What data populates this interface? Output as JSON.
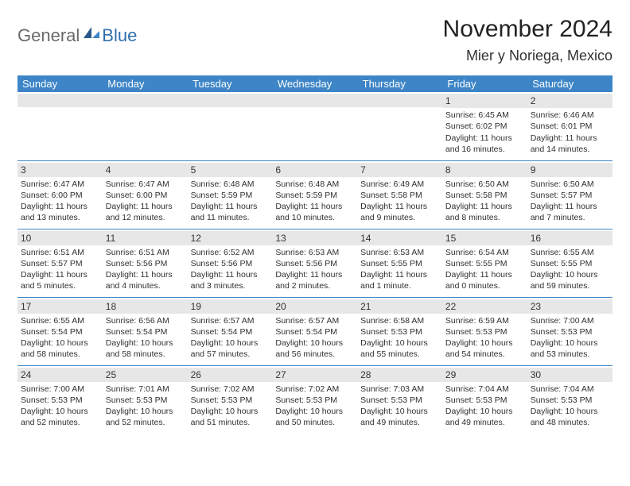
{
  "brand": {
    "general": "General",
    "blue": "Blue"
  },
  "title": "November 2024",
  "location": "Mier y Noriega, Mexico",
  "colors": {
    "header_bg": "#3d85c6",
    "header_text": "#ffffff",
    "daynum_bg": "#e7e7e7",
    "cell_border": "#3d85c6",
    "body_text": "#303030",
    "logo_gray": "#6a6a6a",
    "logo_blue": "#2f6fae",
    "page_bg": "#ffffff"
  },
  "typography": {
    "title_fontsize": 30,
    "location_fontsize": 18,
    "weekday_fontsize": 13,
    "daynum_fontsize": 12,
    "cell_fontsize": 10.5
  },
  "weekdays": [
    "Sunday",
    "Monday",
    "Tuesday",
    "Wednesday",
    "Thursday",
    "Friday",
    "Saturday"
  ],
  "weeks": [
    [
      {
        "n": "",
        "sr": "",
        "ss": "",
        "dl": ""
      },
      {
        "n": "",
        "sr": "",
        "ss": "",
        "dl": ""
      },
      {
        "n": "",
        "sr": "",
        "ss": "",
        "dl": ""
      },
      {
        "n": "",
        "sr": "",
        "ss": "",
        "dl": ""
      },
      {
        "n": "",
        "sr": "",
        "ss": "",
        "dl": ""
      },
      {
        "n": "1",
        "sr": "Sunrise: 6:45 AM",
        "ss": "Sunset: 6:02 PM",
        "dl": "Daylight: 11 hours and 16 minutes."
      },
      {
        "n": "2",
        "sr": "Sunrise: 6:46 AM",
        "ss": "Sunset: 6:01 PM",
        "dl": "Daylight: 11 hours and 14 minutes."
      }
    ],
    [
      {
        "n": "3",
        "sr": "Sunrise: 6:47 AM",
        "ss": "Sunset: 6:00 PM",
        "dl": "Daylight: 11 hours and 13 minutes."
      },
      {
        "n": "4",
        "sr": "Sunrise: 6:47 AM",
        "ss": "Sunset: 6:00 PM",
        "dl": "Daylight: 11 hours and 12 minutes."
      },
      {
        "n": "5",
        "sr": "Sunrise: 6:48 AM",
        "ss": "Sunset: 5:59 PM",
        "dl": "Daylight: 11 hours and 11 minutes."
      },
      {
        "n": "6",
        "sr": "Sunrise: 6:48 AM",
        "ss": "Sunset: 5:59 PM",
        "dl": "Daylight: 11 hours and 10 minutes."
      },
      {
        "n": "7",
        "sr": "Sunrise: 6:49 AM",
        "ss": "Sunset: 5:58 PM",
        "dl": "Daylight: 11 hours and 9 minutes."
      },
      {
        "n": "8",
        "sr": "Sunrise: 6:50 AM",
        "ss": "Sunset: 5:58 PM",
        "dl": "Daylight: 11 hours and 8 minutes."
      },
      {
        "n": "9",
        "sr": "Sunrise: 6:50 AM",
        "ss": "Sunset: 5:57 PM",
        "dl": "Daylight: 11 hours and 7 minutes."
      }
    ],
    [
      {
        "n": "10",
        "sr": "Sunrise: 6:51 AM",
        "ss": "Sunset: 5:57 PM",
        "dl": "Daylight: 11 hours and 5 minutes."
      },
      {
        "n": "11",
        "sr": "Sunrise: 6:51 AM",
        "ss": "Sunset: 5:56 PM",
        "dl": "Daylight: 11 hours and 4 minutes."
      },
      {
        "n": "12",
        "sr": "Sunrise: 6:52 AM",
        "ss": "Sunset: 5:56 PM",
        "dl": "Daylight: 11 hours and 3 minutes."
      },
      {
        "n": "13",
        "sr": "Sunrise: 6:53 AM",
        "ss": "Sunset: 5:56 PM",
        "dl": "Daylight: 11 hours and 2 minutes."
      },
      {
        "n": "14",
        "sr": "Sunrise: 6:53 AM",
        "ss": "Sunset: 5:55 PM",
        "dl": "Daylight: 11 hours and 1 minute."
      },
      {
        "n": "15",
        "sr": "Sunrise: 6:54 AM",
        "ss": "Sunset: 5:55 PM",
        "dl": "Daylight: 11 hours and 0 minutes."
      },
      {
        "n": "16",
        "sr": "Sunrise: 6:55 AM",
        "ss": "Sunset: 5:55 PM",
        "dl": "Daylight: 10 hours and 59 minutes."
      }
    ],
    [
      {
        "n": "17",
        "sr": "Sunrise: 6:55 AM",
        "ss": "Sunset: 5:54 PM",
        "dl": "Daylight: 10 hours and 58 minutes."
      },
      {
        "n": "18",
        "sr": "Sunrise: 6:56 AM",
        "ss": "Sunset: 5:54 PM",
        "dl": "Daylight: 10 hours and 58 minutes."
      },
      {
        "n": "19",
        "sr": "Sunrise: 6:57 AM",
        "ss": "Sunset: 5:54 PM",
        "dl": "Daylight: 10 hours and 57 minutes."
      },
      {
        "n": "20",
        "sr": "Sunrise: 6:57 AM",
        "ss": "Sunset: 5:54 PM",
        "dl": "Daylight: 10 hours and 56 minutes."
      },
      {
        "n": "21",
        "sr": "Sunrise: 6:58 AM",
        "ss": "Sunset: 5:53 PM",
        "dl": "Daylight: 10 hours and 55 minutes."
      },
      {
        "n": "22",
        "sr": "Sunrise: 6:59 AM",
        "ss": "Sunset: 5:53 PM",
        "dl": "Daylight: 10 hours and 54 minutes."
      },
      {
        "n": "23",
        "sr": "Sunrise: 7:00 AM",
        "ss": "Sunset: 5:53 PM",
        "dl": "Daylight: 10 hours and 53 minutes."
      }
    ],
    [
      {
        "n": "24",
        "sr": "Sunrise: 7:00 AM",
        "ss": "Sunset: 5:53 PM",
        "dl": "Daylight: 10 hours and 52 minutes."
      },
      {
        "n": "25",
        "sr": "Sunrise: 7:01 AM",
        "ss": "Sunset: 5:53 PM",
        "dl": "Daylight: 10 hours and 52 minutes."
      },
      {
        "n": "26",
        "sr": "Sunrise: 7:02 AM",
        "ss": "Sunset: 5:53 PM",
        "dl": "Daylight: 10 hours and 51 minutes."
      },
      {
        "n": "27",
        "sr": "Sunrise: 7:02 AM",
        "ss": "Sunset: 5:53 PM",
        "dl": "Daylight: 10 hours and 50 minutes."
      },
      {
        "n": "28",
        "sr": "Sunrise: 7:03 AM",
        "ss": "Sunset: 5:53 PM",
        "dl": "Daylight: 10 hours and 49 minutes."
      },
      {
        "n": "29",
        "sr": "Sunrise: 7:04 AM",
        "ss": "Sunset: 5:53 PM",
        "dl": "Daylight: 10 hours and 49 minutes."
      },
      {
        "n": "30",
        "sr": "Sunrise: 7:04 AM",
        "ss": "Sunset: 5:53 PM",
        "dl": "Daylight: 10 hours and 48 minutes."
      }
    ]
  ]
}
